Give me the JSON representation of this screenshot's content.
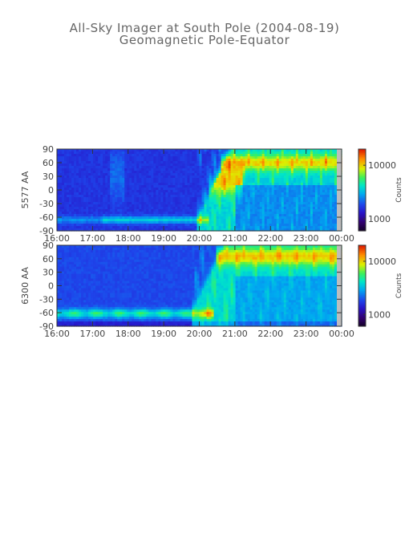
{
  "header": {
    "title": "All-Sky Imager at South Pole (2004-08-19)",
    "subtitle": "Geomagnetic Pole-Equator"
  },
  "chart_data": [
    {
      "type": "heatmap",
      "ylabel": "5577 AA",
      "x_tick_labels": [
        "16:00",
        "17:00",
        "18:00",
        "19:00",
        "20:00",
        "21:00",
        "22:00",
        "23:00",
        "00:00"
      ],
      "y_tick_labels": [
        "90",
        "60",
        "30",
        "0",
        "-30",
        "-60",
        "-90"
      ],
      "x_range_hours": [
        16,
        24
      ],
      "ylim": [
        -90,
        90
      ],
      "colorbar": {
        "label": "Counts",
        "scale": "log",
        "range": [
          600,
          20000
        ],
        "tick_labels": [
          "10000",
          "1000"
        ],
        "ticks": [
          10000,
          1000
        ]
      }
    },
    {
      "type": "heatmap",
      "ylabel": "6300 AA",
      "x_tick_labels": [
        "16:00",
        "17:00",
        "18:00",
        "19:00",
        "20:00",
        "21:00",
        "22:00",
        "23:00",
        "00:00"
      ],
      "y_tick_labels": [
        "90",
        "60",
        "30",
        "0",
        "-30",
        "-60",
        "-90"
      ],
      "x_range_hours": [
        16,
        24
      ],
      "ylim": [
        -90,
        90
      ],
      "colorbar": {
        "label": "Counts",
        "scale": "log",
        "range": [
          600,
          20000
        ],
        "tick_labels": [
          "10000",
          "1000"
        ],
        "ticks": [
          10000,
          1000
        ]
      }
    }
  ]
}
